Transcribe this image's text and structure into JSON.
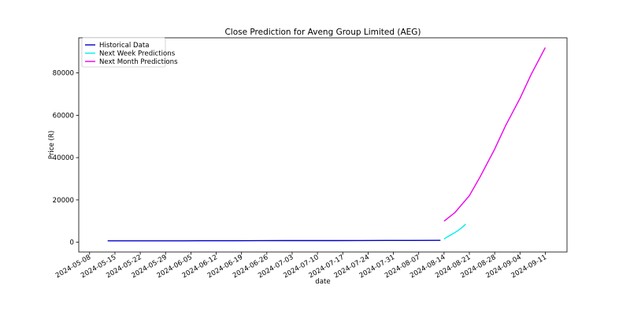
{
  "chart_data": {
    "type": "line",
    "title": "Close Prediction for Aveng Group Limited (AEG)",
    "xlabel": "date",
    "ylabel": "Price (R)",
    "x_ticks": [
      "2024-05-08",
      "2024-05-15",
      "2024-05-22",
      "2024-05-29",
      "2024-06-05",
      "2024-06-12",
      "2024-06-19",
      "2024-06-26",
      "2024-07-03",
      "2024-07-10",
      "2024-07-17",
      "2024-07-24",
      "2024-07-31",
      "2024-08-07",
      "2024-08-14",
      "2024-08-21",
      "2024-08-28",
      "2024-09-04",
      "2024-09-11"
    ],
    "y_ticks": [
      0,
      20000,
      40000,
      60000,
      80000
    ],
    "xlim": [
      "2024-05-05",
      "2024-09-17"
    ],
    "ylim": [
      -4600,
      96600
    ],
    "grid": false,
    "legend_position": "top-left",
    "series": [
      {
        "name": "Historical Data",
        "color": "#0000cd",
        "x": [
          "2024-05-13",
          "2024-05-20",
          "2024-05-27",
          "2024-06-03",
          "2024-06-10",
          "2024-06-17",
          "2024-06-24",
          "2024-07-01",
          "2024-07-08",
          "2024-07-15",
          "2024-07-22",
          "2024-07-29",
          "2024-08-05",
          "2024-08-13"
        ],
        "y": [
          700,
          700,
          690,
          700,
          710,
          730,
          760,
          780,
          790,
          800,
          830,
          870,
          880,
          900
        ]
      },
      {
        "name": "Next Week Predictions",
        "color": "#00eeee",
        "x": [
          "2024-08-14",
          "2024-08-15",
          "2024-08-16",
          "2024-08-17",
          "2024-08-18",
          "2024-08-19",
          "2024-08-20"
        ],
        "y": [
          1500,
          2600,
          3600,
          4600,
          5700,
          7000,
          8600
        ]
      },
      {
        "name": "Next Month Predictions",
        "color": "#ee00ee",
        "x": [
          "2024-08-14",
          "2024-08-17",
          "2024-08-21",
          "2024-08-24",
          "2024-08-28",
          "2024-08-31",
          "2024-09-04",
          "2024-09-07",
          "2024-09-11"
        ],
        "y": [
          10000,
          14000,
          22000,
          31000,
          44000,
          55000,
          68000,
          79000,
          92000
        ]
      }
    ]
  }
}
